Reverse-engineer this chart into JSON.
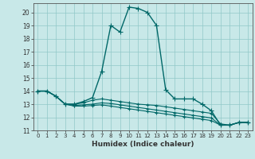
{
  "xlabel": "Humidex (Indice chaleur)",
  "bg_color": "#c8e8e8",
  "line_color": "#006868",
  "xlim": [
    -0.5,
    23.5
  ],
  "ylim": [
    11,
    20.7
  ],
  "xticks": [
    0,
    1,
    2,
    3,
    4,
    5,
    6,
    7,
    8,
    9,
    10,
    11,
    12,
    13,
    14,
    15,
    16,
    17,
    18,
    19,
    20,
    21,
    22,
    23
  ],
  "yticks": [
    11,
    12,
    13,
    14,
    15,
    16,
    17,
    18,
    19,
    20
  ],
  "series1": [
    [
      0,
      14.0
    ],
    [
      1,
      14.0
    ],
    [
      2,
      13.6
    ],
    [
      3,
      13.0
    ],
    [
      4,
      13.0
    ],
    [
      5,
      13.2
    ],
    [
      6,
      13.5
    ],
    [
      7,
      15.5
    ],
    [
      8,
      19.0
    ],
    [
      9,
      18.5
    ],
    [
      10,
      20.4
    ],
    [
      11,
      20.3
    ],
    [
      12,
      20.0
    ],
    [
      13,
      19.0
    ],
    [
      14,
      14.1
    ],
    [
      15,
      13.4
    ],
    [
      16,
      13.4
    ],
    [
      17,
      13.4
    ],
    [
      18,
      13.0
    ],
    [
      19,
      12.5
    ],
    [
      20,
      11.4
    ],
    [
      21,
      11.4
    ],
    [
      22,
      11.6
    ],
    [
      23,
      11.6
    ]
  ],
  "series2": [
    [
      0,
      14.0
    ],
    [
      1,
      14.0
    ],
    [
      2,
      13.6
    ],
    [
      3,
      13.0
    ],
    [
      4,
      13.0
    ],
    [
      5,
      13.1
    ],
    [
      6,
      13.3
    ],
    [
      7,
      13.4
    ],
    [
      8,
      13.3
    ],
    [
      9,
      13.2
    ],
    [
      10,
      13.1
    ],
    [
      11,
      13.0
    ],
    [
      12,
      12.95
    ],
    [
      13,
      12.9
    ],
    [
      14,
      12.8
    ],
    [
      15,
      12.7
    ],
    [
      16,
      12.6
    ],
    [
      17,
      12.5
    ],
    [
      18,
      12.4
    ],
    [
      19,
      12.3
    ],
    [
      20,
      11.5
    ],
    [
      21,
      11.4
    ],
    [
      22,
      11.6
    ],
    [
      23,
      11.6
    ]
  ],
  "series3": [
    [
      0,
      14.0
    ],
    [
      1,
      14.0
    ],
    [
      2,
      13.6
    ],
    [
      3,
      13.0
    ],
    [
      4,
      12.9
    ],
    [
      5,
      12.95
    ],
    [
      6,
      13.0
    ],
    [
      7,
      13.1
    ],
    [
      8,
      13.05
    ],
    [
      9,
      12.95
    ],
    [
      10,
      12.85
    ],
    [
      11,
      12.75
    ],
    [
      12,
      12.65
    ],
    [
      13,
      12.55
    ],
    [
      14,
      12.45
    ],
    [
      15,
      12.35
    ],
    [
      16,
      12.25
    ],
    [
      17,
      12.15
    ],
    [
      18,
      12.05
    ],
    [
      19,
      11.95
    ],
    [
      20,
      11.4
    ],
    [
      21,
      11.4
    ],
    [
      22,
      11.6
    ],
    [
      23,
      11.6
    ]
  ],
  "series4": [
    [
      0,
      14.0
    ],
    [
      1,
      14.0
    ],
    [
      2,
      13.6
    ],
    [
      3,
      13.0
    ],
    [
      4,
      12.85
    ],
    [
      5,
      12.85
    ],
    [
      6,
      12.9
    ],
    [
      7,
      12.95
    ],
    [
      8,
      12.85
    ],
    [
      9,
      12.75
    ],
    [
      10,
      12.65
    ],
    [
      11,
      12.55
    ],
    [
      12,
      12.45
    ],
    [
      13,
      12.35
    ],
    [
      14,
      12.25
    ],
    [
      15,
      12.15
    ],
    [
      16,
      12.05
    ],
    [
      17,
      11.95
    ],
    [
      18,
      11.85
    ],
    [
      19,
      11.75
    ],
    [
      20,
      11.4
    ],
    [
      21,
      11.4
    ],
    [
      22,
      11.6
    ],
    [
      23,
      11.6
    ]
  ]
}
